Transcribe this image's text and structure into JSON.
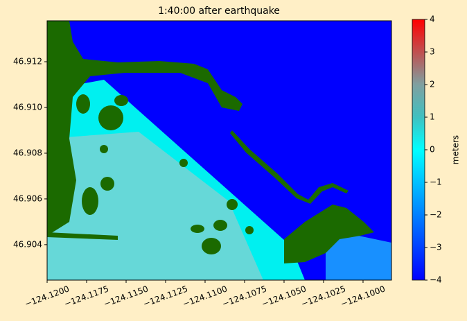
{
  "chart_data": {
    "type": "heatmap",
    "title": "1:40:00 after earthquake",
    "xlim": [
      -124.12,
      -124.0982
    ],
    "xticks": [
      {
        "value": -124.12,
        "label": "−124.1200"
      },
      {
        "value": -124.1175,
        "label": "−124.1175"
      },
      {
        "value": -124.115,
        "label": "−124.1150"
      },
      {
        "value": -124.1125,
        "label": "−124.1125"
      },
      {
        "value": -124.11,
        "label": "−124.1100"
      },
      {
        "value": -124.1075,
        "label": "−124.1075"
      },
      {
        "value": -124.105,
        "label": "−124.1050"
      },
      {
        "value": -124.1025,
        "label": "−124.1025"
      },
      {
        "value": -124.1,
        "label": "−124.1000"
      }
    ],
    "ylim": [
      46.90245,
      46.91379
    ],
    "yticks": [
      46.904,
      46.906,
      46.908,
      {
        "value": 46.91,
        "label": "46.910"
      },
      46.912
    ],
    "colorbar": {
      "label": "meters",
      "clim": [
        -4,
        4
      ],
      "ticks": [
        {
          "value": -4,
          "label": "−4"
        },
        {
          "value": -3,
          "label": "−3"
        },
        {
          "value": -2,
          "label": "−2"
        },
        {
          "value": -1,
          "label": "−1"
        },
        0,
        1,
        2,
        3,
        4
      ],
      "colors": [
        "#0000ff",
        "#0040ff",
        "#0080ff",
        "#00c0ff",
        "#00ffff",
        "#40c0c0",
        "#7fa0a0",
        "#c05050",
        "#ff0000"
      ]
    }
  }
}
